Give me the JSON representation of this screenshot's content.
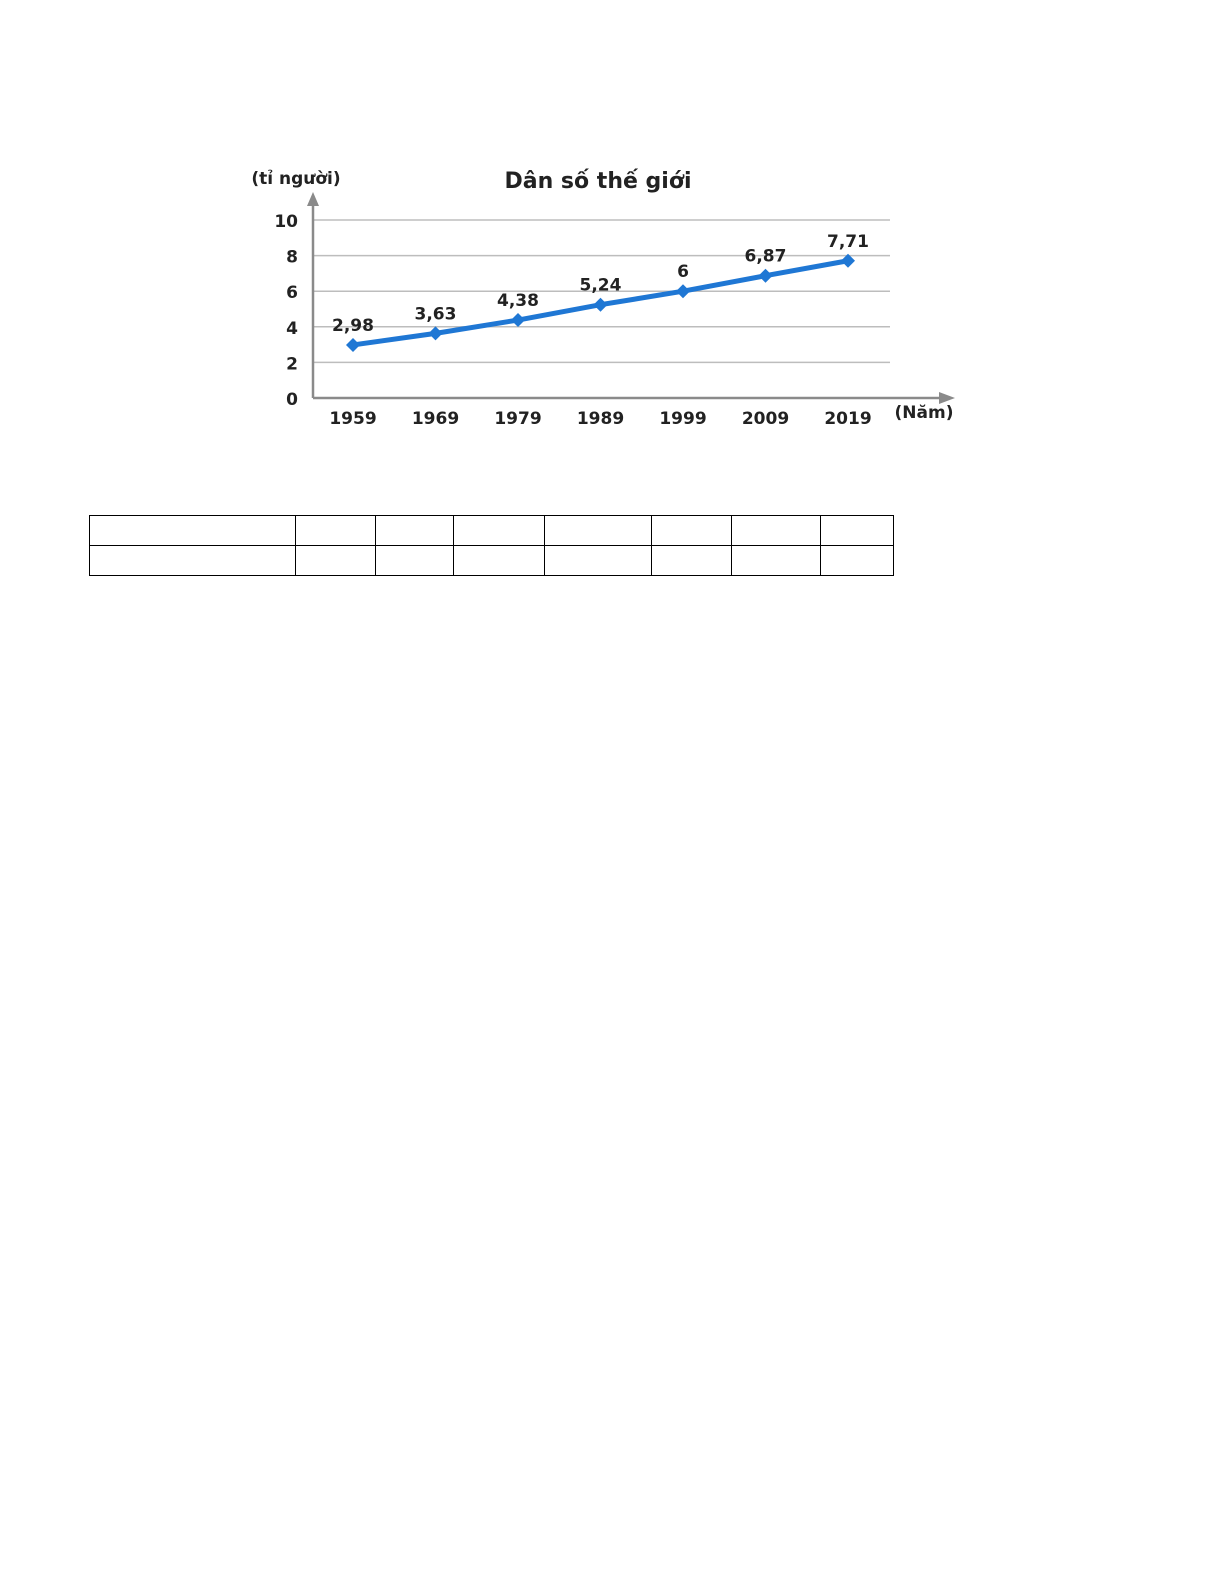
{
  "chart_data": {
    "type": "line",
    "title": "Dân số thế giới",
    "ylabel": "(tỉ người)",
    "xlabel": "(Năm)",
    "ylim": [
      0,
      10
    ],
    "yticks": [
      "0",
      "2",
      "4",
      "6",
      "8",
      "10"
    ],
    "categories": [
      "1959",
      "1969",
      "1979",
      "1989",
      "1999",
      "2009",
      "2019"
    ],
    "values": [
      2.98,
      3.63,
      4.38,
      5.24,
      6,
      6.87,
      7.71
    ],
    "data_labels": [
      "2,98",
      "3,63",
      "4,38",
      "5,24",
      "6",
      "6,87",
      "7,71"
    ],
    "grid": true,
    "line_color": "#1f77d4"
  },
  "table": {
    "rows": 2,
    "columns": 8
  }
}
